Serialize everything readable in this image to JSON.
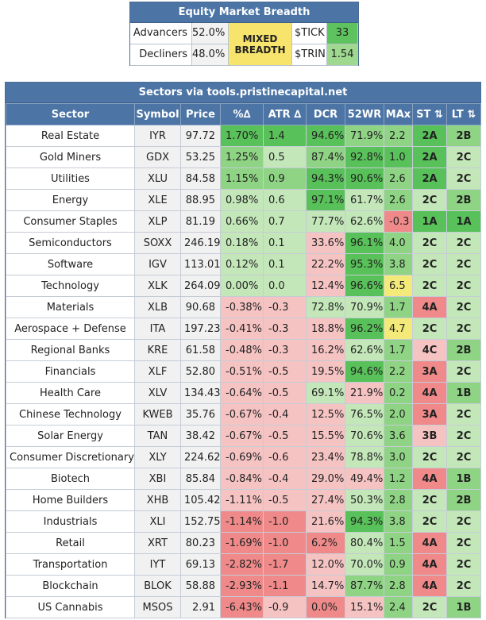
{
  "breadth": {
    "title": "Equity Market Breadth",
    "advancers_label": "Advancers",
    "advancers_value": "52.0%",
    "decliners_label": "Decliners",
    "decliners_value": "48.0%",
    "status_line1": "MIXED",
    "status_line2": "BREADTH",
    "tick_label": "$TICK",
    "tick_value": "33",
    "trin_label": "$TRIN",
    "trin_value": "1.54"
  },
  "sectors": {
    "title": "Sectors via tools.pristinecapital.net",
    "columns": [
      "Sector",
      "Symbol",
      "Price",
      "%∆",
      "ATR ∆",
      "DCR",
      "52WR",
      "MAx",
      "ST ⇅",
      "LT ⇅"
    ],
    "colors": {
      "dark_green": "#59c159",
      "mid_green": "#8fd484",
      "light_green": "#c3e7b9",
      "dark_red": "#f08a8a",
      "light_red": "#f6c3c3",
      "yellow": "#f4ea7a"
    },
    "rows": [
      {
        "sector": "Real Estate",
        "symbol": "IYR",
        "price": "97.72",
        "pct": "1.70%",
        "atr": "1.4",
        "dcr": "94.6%",
        "wr52": "71.9%",
        "max": "2.2",
        "st": "2A",
        "lt": "2B",
        "c": {
          "pct": "#59c159",
          "atr": "#59c159",
          "dcr": "#59c159",
          "wr52": "#8fd484",
          "max": "#8fd484",
          "st": "#59c159",
          "lt": "#8fd484"
        }
      },
      {
        "sector": "Gold Miners",
        "symbol": "GDX",
        "price": "53.25",
        "pct": "1.25%",
        "atr": "0.5",
        "dcr": "87.4%",
        "wr52": "92.8%",
        "max": "1.0",
        "st": "2A",
        "lt": "2C",
        "c": {
          "pct": "#8fd484",
          "atr": "#c3e7b9",
          "dcr": "#8fd484",
          "wr52": "#59c159",
          "max": "#59c159",
          "st": "#59c159",
          "lt": "#c3e7b9"
        }
      },
      {
        "sector": "Utilities",
        "symbol": "XLU",
        "price": "84.58",
        "pct": "1.15%",
        "atr": "0.9",
        "dcr": "94.3%",
        "wr52": "90.6%",
        "max": "2.6",
        "st": "2A",
        "lt": "2C",
        "c": {
          "pct": "#8fd484",
          "atr": "#8fd484",
          "dcr": "#59c159",
          "wr52": "#59c159",
          "max": "#8fd484",
          "st": "#59c159",
          "lt": "#c3e7b9"
        }
      },
      {
        "sector": "Energy",
        "symbol": "XLE",
        "price": "88.95",
        "pct": "0.98%",
        "atr": "0.6",
        "dcr": "97.1%",
        "wr52": "61.7%",
        "max": "2.6",
        "st": "2C",
        "lt": "2B",
        "c": {
          "pct": "#c3e7b9",
          "atr": "#c3e7b9",
          "dcr": "#59c159",
          "wr52": "#c3e7b9",
          "max": "#8fd484",
          "st": "#c3e7b9",
          "lt": "#8fd484"
        }
      },
      {
        "sector": "Consumer Staples",
        "symbol": "XLP",
        "price": "81.19",
        "pct": "0.66%",
        "atr": "0.7",
        "dcr": "77.7%",
        "wr52": "62.6%",
        "max": "-0.3",
        "st": "1A",
        "lt": "1A",
        "c": {
          "pct": "#c3e7b9",
          "atr": "#c3e7b9",
          "dcr": "#c3e7b9",
          "wr52": "#c3e7b9",
          "max": "#f08a8a",
          "st": "#59c159",
          "lt": "#59c159"
        }
      },
      {
        "sector": "Semiconductors",
        "symbol": "SOXX",
        "price": "246.19",
        "pct": "0.18%",
        "atr": "0.1",
        "dcr": "33.6%",
        "wr52": "96.1%",
        "max": "4.0",
        "st": "2C",
        "lt": "2C",
        "c": {
          "pct": "#c3e7b9",
          "atr": "#c3e7b9",
          "dcr": "#f6c3c3",
          "wr52": "#59c159",
          "max": "#8fd484",
          "st": "#c3e7b9",
          "lt": "#c3e7b9"
        }
      },
      {
        "sector": "Software",
        "symbol": "IGV",
        "price": "113.01",
        "pct": "0.12%",
        "atr": "0.1",
        "dcr": "22.2%",
        "wr52": "95.3%",
        "max": "3.8",
        "st": "2C",
        "lt": "2C",
        "c": {
          "pct": "#c3e7b9",
          "atr": "#c3e7b9",
          "dcr": "#f6c3c3",
          "wr52": "#59c159",
          "max": "#8fd484",
          "st": "#c3e7b9",
          "lt": "#c3e7b9"
        }
      },
      {
        "sector": "Technology",
        "symbol": "XLK",
        "price": "264.09",
        "pct": "0.00%",
        "atr": "0.0",
        "dcr": "12.4%",
        "wr52": "96.6%",
        "max": "6.5",
        "st": "2C",
        "lt": "2C",
        "c": {
          "pct": "#c3e7b9",
          "atr": "#c3e7b9",
          "dcr": "#f6c3c3",
          "wr52": "#59c159",
          "max": "#f4ea7a",
          "st": "#c3e7b9",
          "lt": "#c3e7b9"
        }
      },
      {
        "sector": "Materials",
        "symbol": "XLB",
        "price": "90.68",
        "pct": "-0.38%",
        "atr": "-0.3",
        "dcr": "72.8%",
        "wr52": "70.9%",
        "max": "1.7",
        "st": "4A",
        "lt": "2C",
        "c": {
          "pct": "#f6c3c3",
          "atr": "#f6c3c3",
          "dcr": "#c3e7b9",
          "wr52": "#c3e7b9",
          "max": "#8fd484",
          "st": "#f08a8a",
          "lt": "#c3e7b9"
        }
      },
      {
        "sector": "Aerospace + Defense",
        "symbol": "ITA",
        "price": "197.23",
        "pct": "-0.41%",
        "atr": "-0.3",
        "dcr": "18.8%",
        "wr52": "96.2%",
        "max": "4.7",
        "st": "2C",
        "lt": "2C",
        "c": {
          "pct": "#f6c3c3",
          "atr": "#f6c3c3",
          "dcr": "#f6c3c3",
          "wr52": "#59c159",
          "max": "#f4ea7a",
          "st": "#c3e7b9",
          "lt": "#c3e7b9"
        }
      },
      {
        "sector": "Regional Banks",
        "symbol": "KRE",
        "price": "61.58",
        "pct": "-0.48%",
        "atr": "-0.3",
        "dcr": "16.2%",
        "wr52": "62.6%",
        "max": "1.7",
        "st": "4C",
        "lt": "2B",
        "c": {
          "pct": "#f6c3c3",
          "atr": "#f6c3c3",
          "dcr": "#f6c3c3",
          "wr52": "#c3e7b9",
          "max": "#8fd484",
          "st": "#f6c3c3",
          "lt": "#8fd484"
        }
      },
      {
        "sector": "Financials",
        "symbol": "XLF",
        "price": "52.80",
        "pct": "-0.51%",
        "atr": "-0.5",
        "dcr": "19.5%",
        "wr52": "94.6%",
        "max": "2.2",
        "st": "3A",
        "lt": "2C",
        "c": {
          "pct": "#f6c3c3",
          "atr": "#f6c3c3",
          "dcr": "#f6c3c3",
          "wr52": "#59c159",
          "max": "#8fd484",
          "st": "#f08a8a",
          "lt": "#c3e7b9"
        }
      },
      {
        "sector": "Health Care",
        "symbol": "XLV",
        "price": "134.43",
        "pct": "-0.64%",
        "atr": "-0.5",
        "dcr": "69.1%",
        "wr52": "21.9%",
        "max": "0.2",
        "st": "4A",
        "lt": "1B",
        "c": {
          "pct": "#f6c3c3",
          "atr": "#f6c3c3",
          "dcr": "#c3e7b9",
          "wr52": "#f6c3c3",
          "max": "#8fd484",
          "st": "#f08a8a",
          "lt": "#8fd484"
        }
      },
      {
        "sector": "Chinese Technology",
        "symbol": "KWEB",
        "price": "35.76",
        "pct": "-0.67%",
        "atr": "-0.4",
        "dcr": "12.5%",
        "wr52": "76.5%",
        "max": "2.0",
        "st": "3A",
        "lt": "2C",
        "c": {
          "pct": "#f6c3c3",
          "atr": "#f6c3c3",
          "dcr": "#f6c3c3",
          "wr52": "#c3e7b9",
          "max": "#8fd484",
          "st": "#f08a8a",
          "lt": "#c3e7b9"
        }
      },
      {
        "sector": "Solar Energy",
        "symbol": "TAN",
        "price": "38.42",
        "pct": "-0.67%",
        "atr": "-0.5",
        "dcr": "15.5%",
        "wr52": "70.6%",
        "max": "3.6",
        "st": "3B",
        "lt": "2C",
        "c": {
          "pct": "#f6c3c3",
          "atr": "#f6c3c3",
          "dcr": "#f6c3c3",
          "wr52": "#c3e7b9",
          "max": "#8fd484",
          "st": "#f6c3c3",
          "lt": "#c3e7b9"
        }
      },
      {
        "sector": "Consumer Discretionary",
        "symbol": "XLY",
        "price": "224.62",
        "pct": "-0.69%",
        "atr": "-0.6",
        "dcr": "23.4%",
        "wr52": "78.8%",
        "max": "3.0",
        "st": "2C",
        "lt": "2C",
        "c": {
          "pct": "#f6c3c3",
          "atr": "#f6c3c3",
          "dcr": "#f6c3c3",
          "wr52": "#c3e7b9",
          "max": "#8fd484",
          "st": "#c3e7b9",
          "lt": "#c3e7b9"
        }
      },
      {
        "sector": "Biotech",
        "symbol": "XBI",
        "price": "85.84",
        "pct": "-0.84%",
        "atr": "-0.4",
        "dcr": "29.0%",
        "wr52": "49.4%",
        "max": "1.2",
        "st": "4A",
        "lt": "1B",
        "c": {
          "pct": "#f6c3c3",
          "atr": "#f6c3c3",
          "dcr": "#f6c3c3",
          "wr52": "#f6c3c3",
          "max": "#8fd484",
          "st": "#f08a8a",
          "lt": "#8fd484"
        }
      },
      {
        "sector": "Home Builders",
        "symbol": "XHB",
        "price": "105.42",
        "pct": "-1.11%",
        "atr": "-0.5",
        "dcr": "27.4%",
        "wr52": "50.3%",
        "max": "2.8",
        "st": "2C",
        "lt": "2B",
        "c": {
          "pct": "#f6c3c3",
          "atr": "#f6c3c3",
          "dcr": "#f6c3c3",
          "wr52": "#c3e7b9",
          "max": "#8fd484",
          "st": "#c3e7b9",
          "lt": "#8fd484"
        }
      },
      {
        "sector": "Industrials",
        "symbol": "XLI",
        "price": "152.75",
        "pct": "-1.14%",
        "atr": "-1.0",
        "dcr": "21.6%",
        "wr52": "94.3%",
        "max": "3.8",
        "st": "2C",
        "lt": "2C",
        "c": {
          "pct": "#f08a8a",
          "atr": "#f08a8a",
          "dcr": "#f6c3c3",
          "wr52": "#59c159",
          "max": "#8fd484",
          "st": "#c3e7b9",
          "lt": "#c3e7b9"
        }
      },
      {
        "sector": "Retail",
        "symbol": "XRT",
        "price": "80.23",
        "pct": "-1.69%",
        "atr": "-1.0",
        "dcr": "6.2%",
        "wr52": "80.4%",
        "max": "1.5",
        "st": "4A",
        "lt": "2C",
        "c": {
          "pct": "#f08a8a",
          "atr": "#f08a8a",
          "dcr": "#f08a8a",
          "wr52": "#c3e7b9",
          "max": "#8fd484",
          "st": "#f08a8a",
          "lt": "#c3e7b9"
        }
      },
      {
        "sector": "Transportation",
        "symbol": "IYT",
        "price": "69.13",
        "pct": "-2.82%",
        "atr": "-1.7",
        "dcr": "12.0%",
        "wr52": "70.0%",
        "max": "0.9",
        "st": "4A",
        "lt": "2C",
        "c": {
          "pct": "#f08a8a",
          "atr": "#f08a8a",
          "dcr": "#f6c3c3",
          "wr52": "#c3e7b9",
          "max": "#8fd484",
          "st": "#f08a8a",
          "lt": "#c3e7b9"
        }
      },
      {
        "sector": "Blockchain",
        "symbol": "BLOK",
        "price": "58.88",
        "pct": "-2.93%",
        "atr": "-1.1",
        "dcr": "14.7%",
        "wr52": "87.7%",
        "max": "2.8",
        "st": "4A",
        "lt": "2C",
        "c": {
          "pct": "#f08a8a",
          "atr": "#f08a8a",
          "dcr": "#f6c3c3",
          "wr52": "#8fd484",
          "max": "#8fd484",
          "st": "#f08a8a",
          "lt": "#c3e7b9"
        }
      },
      {
        "sector": "US Cannabis",
        "symbol": "MSOS",
        "price": "2.91",
        "pct": "-6.43%",
        "atr": "-0.9",
        "dcr": "0.0%",
        "wr52": "15.1%",
        "max": "2.4",
        "st": "2C",
        "lt": "1B",
        "c": {
          "pct": "#f08a8a",
          "atr": "#f6c3c3",
          "dcr": "#f08a8a",
          "wr52": "#f6c3c3",
          "max": "#8fd484",
          "st": "#c3e7b9",
          "lt": "#8fd484"
        }
      }
    ]
  }
}
